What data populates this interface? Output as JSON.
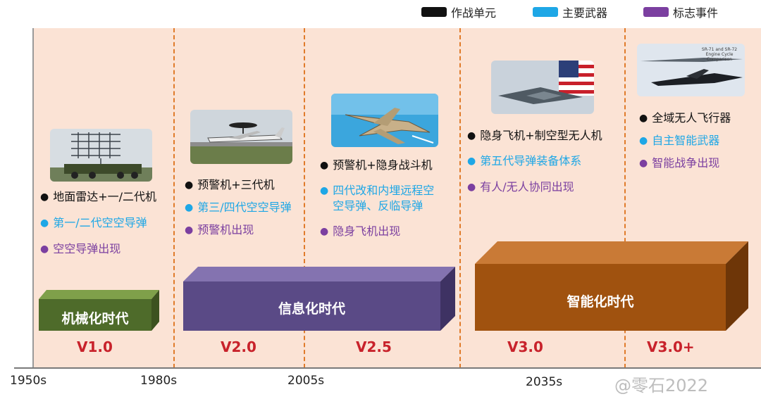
{
  "legend": [
    {
      "label": "作战单元",
      "color": "#111111"
    },
    {
      "label": "主要武器",
      "color": "#1ea7e6"
    },
    {
      "label": "标志事件",
      "color": "#7b3fa0"
    }
  ],
  "ticks": [
    "1950s",
    "1980s",
    "2005s",
    "2035s"
  ],
  "stages": [
    {
      "unit": "地面雷达+一/二代机",
      "weapon": "第一/二代空空导弹",
      "event": "空空导弹出现",
      "version": "V1.0"
    },
    {
      "unit": "预警机+三代机",
      "weapon": "第三/四代空空导弹",
      "event": "预警机出现",
      "version": "V2.0"
    },
    {
      "unit": "预警机+隐身战斗机",
      "weapon_line1": "四代改和内埋远程空",
      "weapon_line2": "空导弹、反临导弹",
      "event": "隐身飞机出现",
      "version": "V2.5"
    },
    {
      "unit": "隐身飞机+制空型无人机",
      "weapon": "第五代导弹装备体系",
      "event": "有人/无人协同出现",
      "version": "V3.0"
    },
    {
      "unit": "全域无人飞行器",
      "weapon": "自主智能武器",
      "event": "智能战争出现",
      "version": "V3.0+"
    }
  ],
  "eras": [
    {
      "label": "机械化时代",
      "color": "#4e6b2a"
    },
    {
      "label": "信息化时代",
      "color": "#5a4a86"
    },
    {
      "label": "智能化时代",
      "color": "#a0520f"
    }
  ],
  "photo5_caption_line1": "SR-71 and SR-72",
  "photo5_caption_line2": "Engine Cycle",
  "photo5_caption_line3": "Comparison",
  "watermark": "@零石2022"
}
